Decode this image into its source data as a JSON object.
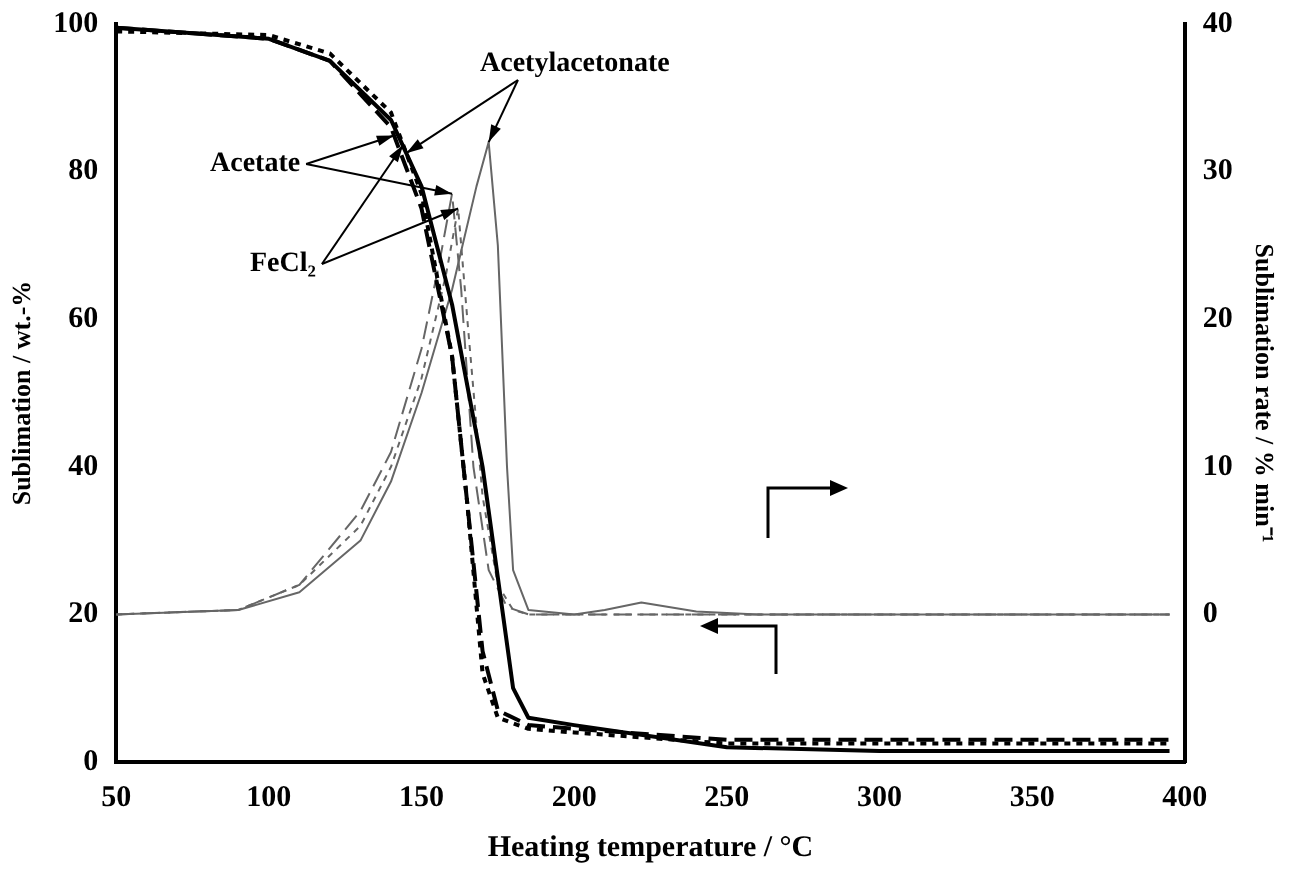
{
  "chart_data": {
    "type": "line",
    "xlabel": "Heating temperature / °C",
    "ylabel": "Sublimation / wt.-%",
    "y2label": "Sublimation rate / % min⁻¹",
    "xlim": [
      50,
      400
    ],
    "xticks": [
      50,
      100,
      150,
      200,
      250,
      300,
      350,
      400
    ],
    "ylim": [
      0,
      100
    ],
    "yticks": [
      0,
      20,
      40,
      60,
      80,
      100
    ],
    "y2lim": [
      -10,
      40
    ],
    "y2ticks": [
      0,
      10,
      20,
      30,
      40
    ],
    "annotations": [
      {
        "text": "Acetylacetonate",
        "x": 145,
        "y": 82.5
      },
      {
        "text": "Acetate",
        "x": 141,
        "y": 84.9
      },
      {
        "text": "FeCl₂",
        "x": 144,
        "y": 83.6
      }
    ],
    "grid": false,
    "legend": false,
    "marker": "none",
    "series": [
      {
        "color": "#000000",
        "line_style": "solid",
        "x": [
          50,
          100,
          120,
          140,
          150,
          160,
          170,
          175,
          180,
          185,
          200,
          250,
          300,
          395
        ],
        "values": [
          99.5,
          98,
          95,
          87,
          78,
          62,
          40,
          25,
          10,
          6,
          5,
          2,
          1.5,
          1.5
        ]
      },
      {
        "color": "#000000",
        "line_style": "dashed",
        "x": [
          50,
          100,
          120,
          140,
          150,
          160,
          165,
          170,
          175,
          185,
          200,
          250,
          395
        ],
        "values": [
          99.5,
          98,
          95,
          86,
          75,
          55,
          35,
          15,
          7,
          5,
          4.5,
          3,
          3
        ]
      },
      {
        "color": "#000000",
        "line_style": "dotted",
        "x": [
          50,
          100,
          120,
          140,
          150,
          160,
          165,
          170,
          175,
          185,
          200,
          250,
          395
        ],
        "values": [
          99,
          98.5,
          96,
          88,
          77,
          55,
          35,
          12,
          6,
          4.5,
          4,
          2.5,
          2.5
        ]
      },
      {
        "color": "#666666",
        "line_style": "solid",
        "axis": "y2",
        "x": [
          50,
          90,
          110,
          130,
          140,
          150,
          160,
          168,
          172,
          175,
          178,
          180,
          185,
          200,
          210,
          222,
          240,
          260,
          395
        ],
        "values": [
          0,
          0.3,
          1.5,
          5,
          9,
          15,
          22,
          29,
          32,
          25,
          10,
          3,
          0.3,
          0,
          0.3,
          0.8,
          0.2,
          0,
          0
        ]
      },
      {
        "color": "#666666",
        "line_style": "dashed",
        "axis": "y2",
        "x": [
          50,
          90,
          110,
          130,
          140,
          150,
          156,
          160,
          163,
          167,
          172,
          178,
          185,
          395
        ],
        "values": [
          0,
          0.3,
          2,
          7,
          11,
          18,
          24,
          28.5,
          22,
          10,
          3,
          0.5,
          0,
          0
        ]
      },
      {
        "color": "#666666",
        "line_style": "dotted",
        "axis": "y2",
        "x": [
          50,
          90,
          110,
          130,
          140,
          150,
          158,
          162,
          165,
          170,
          175,
          180,
          185,
          395
        ],
        "values": [
          0,
          0.3,
          2,
          6,
          10,
          16,
          23,
          27.5,
          20,
          8,
          2,
          0.3,
          0,
          0
        ]
      }
    ]
  }
}
